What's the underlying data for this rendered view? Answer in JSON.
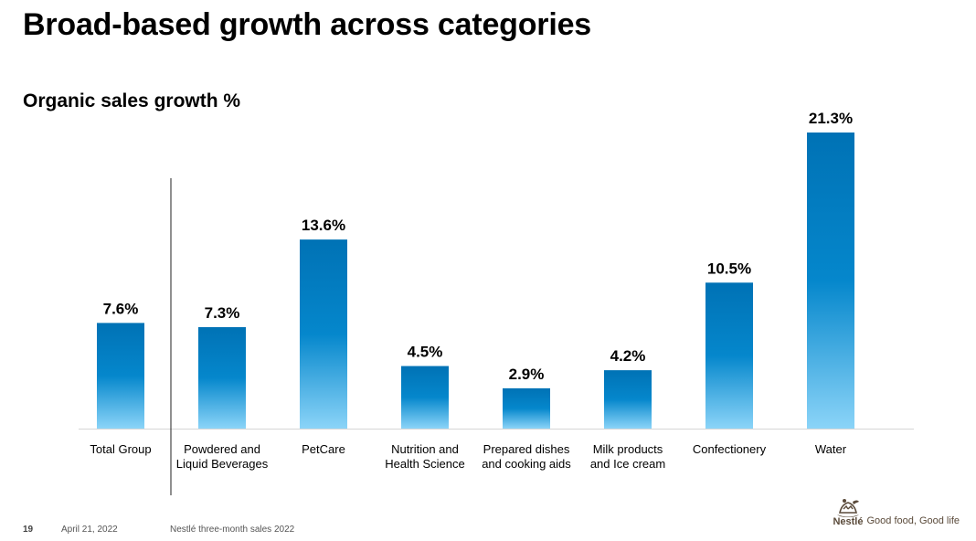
{
  "slide": {
    "title": "Broad-based growth across categories",
    "page_number": "19",
    "date": "April 21, 2022",
    "document": "Nestlé three-month sales 2022",
    "brand_name": "Nestlé",
    "tagline": "Good food, Good life"
  },
  "chart_data": {
    "type": "bar",
    "title": "Organic sales growth %",
    "categories": [
      [
        "Total Group"
      ],
      [
        "Powdered and",
        "Liquid Beverages"
      ],
      [
        "PetCare"
      ],
      [
        "Nutrition and",
        "Health Science"
      ],
      [
        "Prepared dishes",
        "and cooking aids"
      ],
      [
        "Milk products",
        "and Ice cream"
      ],
      [
        "Confectionery"
      ],
      [
        "Water"
      ]
    ],
    "values": [
      7.6,
      7.3,
      13.6,
      4.5,
      2.9,
      4.2,
      10.5,
      21.3
    ],
    "value_labels": [
      "7.6%",
      "7.3%",
      "13.6%",
      "4.5%",
      "2.9%",
      "4.2%",
      "10.5%",
      "21.3%"
    ],
    "ylim": [
      0,
      21.3
    ],
    "grid": false,
    "legend": "none",
    "separator_after_index": 0,
    "colors": {
      "bar_top": "#0072b5",
      "bar_mid": "#0587cc",
      "bar_bottom": "#8bd4f8",
      "baseline": "#d6d6d6",
      "separator": "#222222"
    }
  }
}
